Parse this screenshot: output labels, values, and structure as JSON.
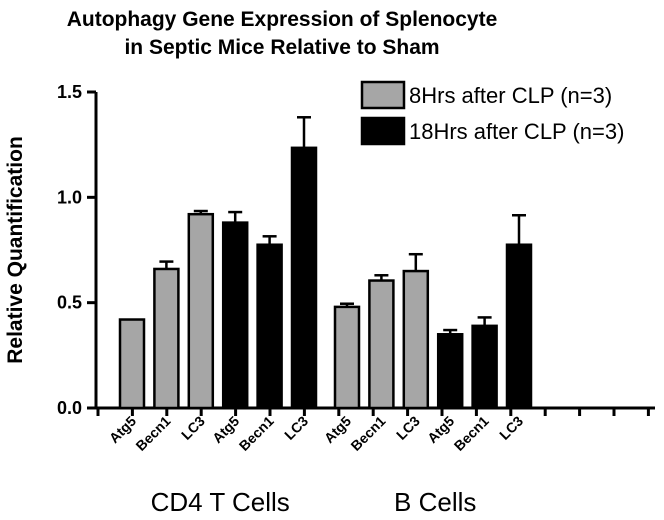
{
  "chart_data": {
    "type": "bar",
    "title_lines": [
      "Autophagy Gene Expression of Splenocyte",
      "in Septic Mice Relative to Sham"
    ],
    "ylabel": "Relative Quantification",
    "ylim": [
      0,
      1.5
    ],
    "yticks": [
      "0.0",
      "0.5",
      "1.0",
      "1.5"
    ],
    "legend_position": "top-right",
    "series": [
      {
        "name": "8Hrs after CLP (n=3)",
        "color": "#a6a6a6"
      },
      {
        "name": "18Hrs after CLP (n=3)",
        "color": "#000000"
      }
    ],
    "groups": [
      {
        "label": "CD4 T Cells",
        "bars": [
          {
            "category": "Atg5",
            "series": 0,
            "value": 0.42,
            "error": 0.0
          },
          {
            "category": "Becn1",
            "series": 0,
            "value": 0.66,
            "error": 0.035
          },
          {
            "category": "LC3",
            "series": 0,
            "value": 0.92,
            "error": 0.015
          },
          {
            "category": "Atg5",
            "series": 1,
            "value": 0.88,
            "error": 0.05
          },
          {
            "category": "Becn1",
            "series": 1,
            "value": 0.775,
            "error": 0.04
          },
          {
            "category": "LC3",
            "series": 1,
            "value": 1.235,
            "error": 0.145
          }
        ]
      },
      {
        "label": "B Cells",
        "bars": [
          {
            "category": "Atg5",
            "series": 0,
            "value": 0.48,
            "error": 0.015
          },
          {
            "category": "Becn1",
            "series": 0,
            "value": 0.605,
            "error": 0.025
          },
          {
            "category": "LC3",
            "series": 0,
            "value": 0.65,
            "error": 0.08
          },
          {
            "category": "Atg5",
            "series": 1,
            "value": 0.35,
            "error": 0.02
          },
          {
            "category": "Becn1",
            "series": 1,
            "value": 0.39,
            "error": 0.04
          },
          {
            "category": "LC3",
            "series": 1,
            "value": 0.775,
            "error": 0.14
          }
        ]
      }
    ]
  }
}
